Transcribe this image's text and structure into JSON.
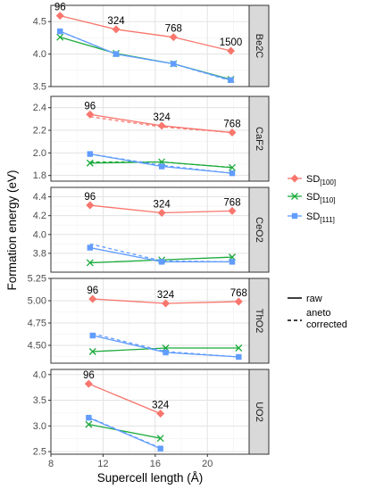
{
  "chart_data": {
    "type": "line",
    "facet_layout": "vertical",
    "xlabel": "Supercell length (Å)",
    "ylabel": "Formation energy (eV)",
    "xlim": [
      8,
      23.2
    ],
    "x_ticks": [
      8,
      12,
      16,
      20
    ],
    "grid": true,
    "legend_position": "right",
    "legend": {
      "series": [
        {
          "key": "SD100",
          "base": "SD",
          "sub": "[100]",
          "color": "#F8766D",
          "marker": "diamond"
        },
        {
          "key": "SD110",
          "base": "SD",
          "sub": "[110]",
          "color": "#1AAA3A",
          "marker": "cross"
        },
        {
          "key": "SD111",
          "base": "SD",
          "sub": "[111]",
          "color": "#619CFF",
          "marker": "square"
        }
      ],
      "linetypes": [
        {
          "key": "raw",
          "lines": [
            "raw"
          ],
          "dash": "solid"
        },
        {
          "key": "aneto",
          "lines": [
            "aneto",
            "corrected"
          ],
          "dash": "dashed"
        }
      ]
    },
    "panels": [
      {
        "strip": "Be2C",
        "ylim": [
          3.5,
          4.75
        ],
        "y_ticks": [
          3.5,
          4.0,
          4.5
        ],
        "y_tick_labels": [
          "3.5",
          "4.0",
          "4.5"
        ],
        "series": [
          {
            "key": "SD100",
            "type": "raw",
            "x": [
              8.7,
              13.0,
              17.4,
              21.8
            ],
            "y": [
              4.59,
              4.38,
              4.26,
              4.05
            ]
          },
          {
            "key": "SD110",
            "type": "raw",
            "x": [
              8.7,
              13.0,
              17.4,
              21.8
            ],
            "y": [
              4.26,
              4.01,
              3.85,
              3.61
            ]
          },
          {
            "key": "SD111",
            "type": "raw",
            "x": [
              8.7,
              13.0,
              17.4,
              21.8
            ],
            "y": [
              4.35,
              4.0,
              3.85,
              3.6
            ]
          },
          {
            "key": "SD111",
            "type": "aneto",
            "x": [
              8.7,
              13.0,
              17.4,
              21.8
            ],
            "y": [
              4.35,
              4.0,
              3.85,
              3.59
            ]
          }
        ],
        "annotations": [
          {
            "text": "96",
            "x": 8.7,
            "y": 4.59
          },
          {
            "text": "324",
            "x": 13.0,
            "y": 4.38
          },
          {
            "text": "768",
            "x": 17.4,
            "y": 4.26
          },
          {
            "text": "1500",
            "x": 21.8,
            "y": 4.05
          }
        ]
      },
      {
        "strip": "CaF2",
        "ylim": [
          1.75,
          2.5
        ],
        "y_ticks": [
          1.8,
          2.0,
          2.2,
          2.4
        ],
        "y_tick_labels": [
          "1.8",
          "2.0",
          "2.2",
          "2.4"
        ],
        "series": [
          {
            "key": "SD100",
            "type": "raw",
            "x": [
              11.0,
              16.5,
              21.9
            ],
            "y": [
              2.34,
              2.24,
              2.18
            ]
          },
          {
            "key": "SD100",
            "type": "aneto",
            "x": [
              11.0,
              16.5,
              21.9
            ],
            "y": [
              2.32,
              2.23,
              2.18
            ]
          },
          {
            "key": "SD110",
            "type": "raw",
            "x": [
              11.0,
              16.5,
              21.9
            ],
            "y": [
              1.91,
              1.92,
              1.87
            ]
          },
          {
            "key": "SD110",
            "type": "aneto",
            "x": [
              11.0,
              16.5,
              21.9
            ],
            "y": [
              1.92,
              1.92,
              1.87
            ]
          },
          {
            "key": "SD111",
            "type": "raw",
            "x": [
              11.0,
              16.5,
              21.9
            ],
            "y": [
              1.99,
              1.88,
              1.82
            ]
          },
          {
            "key": "SD111",
            "type": "aneto",
            "x": [
              11.0,
              16.5,
              21.9
            ],
            "y": [
              1.99,
              1.89,
              1.82
            ]
          }
        ],
        "annotations": [
          {
            "text": "96",
            "x": 11.0,
            "y": 2.34
          },
          {
            "text": "324",
            "x": 16.5,
            "y": 2.24
          },
          {
            "text": "768",
            "x": 21.9,
            "y": 2.18
          }
        ]
      },
      {
        "strip": "CeO2",
        "ylim": [
          3.6,
          4.5
        ],
        "y_ticks": [
          3.8,
          4.0,
          4.2,
          4.4
        ],
        "y_tick_labels": [
          "3.8",
          "4.0",
          "4.2",
          "4.4"
        ],
        "series": [
          {
            "key": "SD100",
            "type": "raw",
            "x": [
              11.0,
              16.5,
              21.9
            ],
            "y": [
              4.31,
              4.23,
              4.25
            ]
          },
          {
            "key": "SD110",
            "type": "raw",
            "x": [
              11.0,
              16.5,
              21.9
            ],
            "y": [
              3.7,
              3.73,
              3.76
            ]
          },
          {
            "key": "SD111",
            "type": "raw",
            "x": [
              11.0,
              16.5,
              21.9
            ],
            "y": [
              3.86,
              3.71,
              3.71
            ]
          },
          {
            "key": "SD111",
            "type": "aneto",
            "x": [
              11.0,
              16.5,
              21.9
            ],
            "y": [
              3.9,
              3.72,
              3.71
            ]
          }
        ],
        "annotations": [
          {
            "text": "96",
            "x": 11.0,
            "y": 4.31
          },
          {
            "text": "324",
            "x": 16.5,
            "y": 4.23
          },
          {
            "text": "768",
            "x": 21.9,
            "y": 4.25
          }
        ]
      },
      {
        "strip": "ThO2",
        "ylim": [
          4.3,
          5.25
        ],
        "y_ticks": [
          4.5,
          4.75,
          5.0,
          5.25
        ],
        "y_tick_labels": [
          "4.50",
          "4.75",
          "5.00",
          "5.25"
        ],
        "series": [
          {
            "key": "SD100",
            "type": "raw",
            "x": [
              11.2,
              16.8,
              22.4
            ],
            "y": [
              5.02,
              4.97,
              4.99
            ]
          },
          {
            "key": "SD110",
            "type": "raw",
            "x": [
              11.2,
              16.8,
              22.4
            ],
            "y": [
              4.43,
              4.47,
              4.47
            ]
          },
          {
            "key": "SD111",
            "type": "raw",
            "x": [
              11.2,
              16.8,
              22.4
            ],
            "y": [
              4.61,
              4.42,
              4.37
            ]
          },
          {
            "key": "SD111",
            "type": "aneto",
            "x": [
              11.2,
              16.8,
              22.4
            ],
            "y": [
              4.63,
              4.43,
              4.37
            ]
          }
        ],
        "annotations": [
          {
            "text": "96",
            "x": 11.2,
            "y": 5.02
          },
          {
            "text": "324",
            "x": 16.8,
            "y": 4.97
          },
          {
            "text": "768",
            "x": 22.4,
            "y": 4.99
          }
        ]
      },
      {
        "strip": "UO2",
        "ylim": [
          2.45,
          4.1
        ],
        "y_ticks": [
          2.5,
          3.0,
          3.5,
          4.0
        ],
        "y_tick_labels": [
          "2.5",
          "3.0",
          "3.5",
          "4.0"
        ],
        "series": [
          {
            "key": "SD100",
            "type": "raw",
            "x": [
              10.9,
              16.4
            ],
            "y": [
              3.82,
              3.24
            ]
          },
          {
            "key": "SD110",
            "type": "raw",
            "x": [
              10.9,
              16.4
            ],
            "y": [
              3.03,
              2.76
            ]
          },
          {
            "key": "SD111",
            "type": "raw",
            "x": [
              10.9,
              16.4
            ],
            "y": [
              3.16,
              2.56
            ]
          },
          {
            "key": "SD111",
            "type": "aneto",
            "x": [
              10.9,
              16.4
            ],
            "y": [
              3.17,
              2.57
            ]
          }
        ],
        "annotations": [
          {
            "text": "96",
            "x": 10.9,
            "y": 3.82
          },
          {
            "text": "324",
            "x": 16.4,
            "y": 3.24
          }
        ]
      }
    ]
  }
}
